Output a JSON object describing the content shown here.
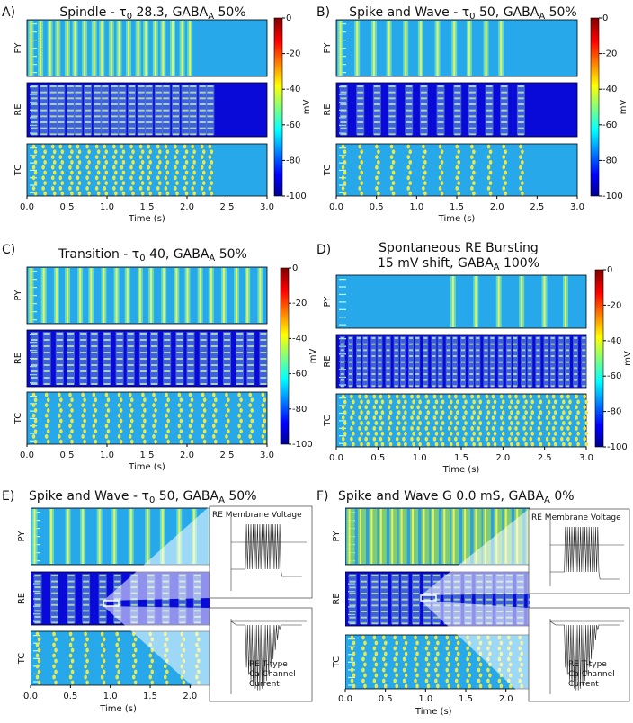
{
  "rows": [
    "PY",
    "RE",
    "TC"
  ],
  "x_label": "Time (s)",
  "colorbar": {
    "label": "mV",
    "lim": [
      -100,
      0
    ],
    "ticks": [
      0,
      -20,
      -40,
      -60,
      -80,
      -100
    ]
  },
  "panels": [
    {
      "letter": "A)",
      "title": [
        [
          {
            "text": "Spindle - τ"
          },
          {
            "text": "0",
            "sub": true
          },
          {
            "text": " 28.3, GABA"
          },
          {
            "text": "A",
            "sub": true
          },
          {
            "text": " 50%"
          }
        ]
      ],
      "xlim": [
        0,
        3
      ],
      "xticks": [
        {
          "value": 0,
          "label": "0.0"
        },
        0.5,
        {
          "value": 1,
          "label": "1.0"
        },
        1.5,
        {
          "value": 2,
          "label": "2.0"
        },
        2.5,
        {
          "value": 3,
          "label": "3.0"
        }
      ]
    },
    {
      "letter": "B)",
      "title": [
        [
          {
            "text": "Spike and Wave - τ"
          },
          {
            "text": "0",
            "sub": true
          },
          {
            "text": " 50, GABA"
          },
          {
            "text": "A",
            "sub": true
          },
          {
            "text": " 50%"
          }
        ]
      ],
      "xlim": [
        0,
        3
      ],
      "xticks": [
        {
          "value": 0,
          "label": "0.0"
        },
        0.5,
        {
          "value": 1,
          "label": "1.0"
        },
        1.5,
        {
          "value": 2,
          "label": "2.0"
        },
        2.5,
        {
          "value": 3,
          "label": "3.0"
        }
      ]
    },
    {
      "letter": "C)",
      "title": [
        [
          {
            "text": "Transition - τ"
          },
          {
            "text": "0",
            "sub": true
          },
          {
            "text": " 40, GABA"
          },
          {
            "text": "A",
            "sub": true
          },
          {
            "text": " 50%"
          }
        ]
      ],
      "xlim": [
        0,
        3
      ],
      "xticks": [
        {
          "value": 0,
          "label": "0.0"
        },
        0.5,
        {
          "value": 1,
          "label": "1.0"
        },
        1.5,
        {
          "value": 2,
          "label": "2.0"
        },
        2.5,
        {
          "value": 3,
          "label": "3.0"
        }
      ]
    },
    {
      "letter": "D)",
      "title": [
        [
          {
            "text": "Spontaneous RE Bursting"
          }
        ],
        [
          {
            "text": "15 mV shift, GABA"
          },
          {
            "text": "A",
            "sub": true
          },
          {
            "text": " 100%"
          }
        ]
      ],
      "xlim": [
        0,
        3
      ],
      "xticks": [
        {
          "value": 0,
          "label": "0.0"
        },
        0.5,
        {
          "value": 1,
          "label": "1.0"
        },
        1.5,
        {
          "value": 2,
          "label": "2.0"
        },
        2.5,
        {
          "value": 3,
          "label": "3.0"
        }
      ]
    },
    {
      "letter": "E)",
      "title": [
        [
          {
            "text": "Spike and Wave - τ"
          },
          {
            "text": "0",
            "sub": true
          },
          {
            "text": " 50, GABA"
          },
          {
            "text": "A",
            "sub": true
          },
          {
            "text": " 50%"
          }
        ]
      ],
      "xlim": [
        0,
        3
      ],
      "xticks": [
        {
          "value": 0,
          "label": "0.0"
        },
        0.5,
        {
          "value": 1,
          "label": "1.0"
        },
        1.5,
        {
          "value": 2,
          "label": "2.0"
        }
      ],
      "insets": [
        "RE Membrane Voltage",
        "RE T-type\nCa Channel\nCurrent"
      ]
    },
    {
      "letter": "F)",
      "title": [
        [
          {
            "text": "Spike and Wave  G 0.0 mS, GABA"
          },
          {
            "text": "A",
            "sub": true
          },
          {
            "text": " 0%"
          }
        ]
      ],
      "xlim": [
        0,
        3
      ],
      "xticks": [
        {
          "value": 0,
          "label": "0.0"
        },
        0.5,
        {
          "value": 1,
          "label": "1.0"
        },
        1.5,
        {
          "value": 2,
          "label": "2.0"
        }
      ],
      "insets": [
        "RE Membrane Voltage",
        "RE T-type\nCa Channel\nCurrent"
      ]
    }
  ]
}
